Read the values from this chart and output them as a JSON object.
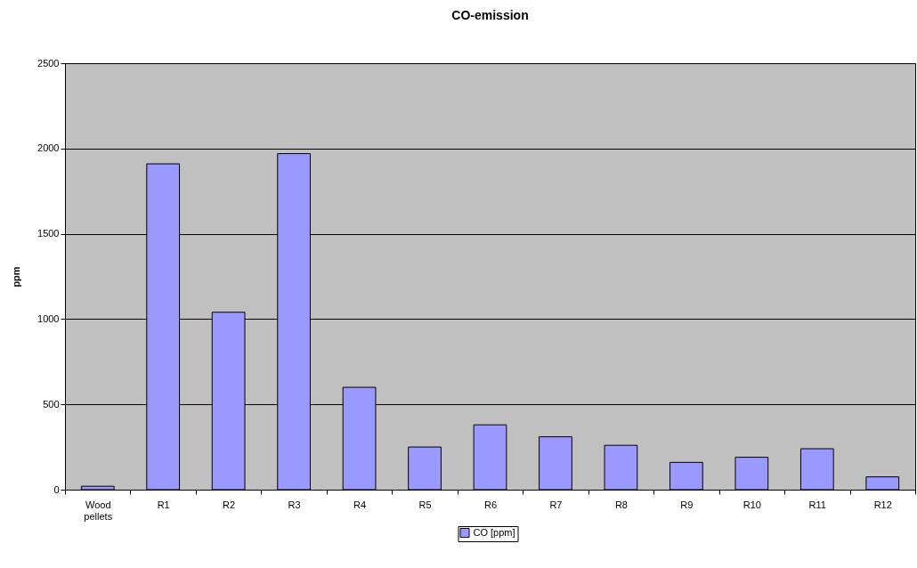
{
  "chart_data": {
    "type": "bar",
    "title": "CO-emission",
    "ylabel": "ppm",
    "categories": [
      "Wood pellets",
      "R1",
      "R2",
      "R3",
      "R4",
      "R5",
      "R6",
      "R7",
      "R8",
      "R9",
      "R10",
      "R11",
      "R12"
    ],
    "series": [
      {
        "name": "CO [ppm]",
        "color": "#9999ff",
        "values": [
          20,
          1910,
          1040,
          1970,
          600,
          250,
          380,
          310,
          260,
          160,
          190,
          240,
          75
        ]
      }
    ],
    "ylim": [
      0,
      2500
    ],
    "yticks": [
      0,
      500,
      1000,
      1500,
      2000,
      2500
    ],
    "grid": "y",
    "legend": "bottom"
  }
}
